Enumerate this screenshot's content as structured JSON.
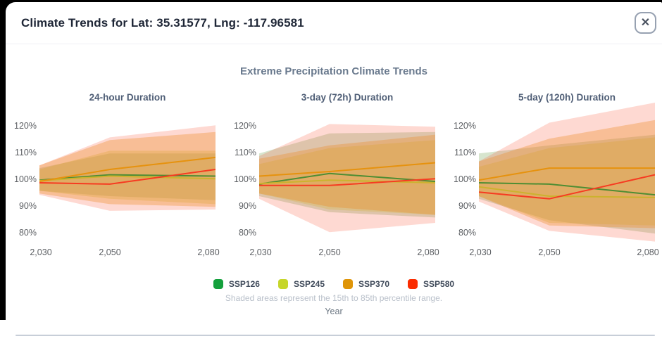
{
  "modal": {
    "title": "Climate Trends for Lat: 35.31577, Lng: -117.96581",
    "close_glyph": "✕"
  },
  "chart": {
    "title": "Extreme Precipitation Climate Trends",
    "note": "Shaded areas represent the 15th to 85th percentile range.",
    "xlabel": "Year",
    "legend": [
      {
        "label": "SSP126",
        "color": "#14a03c"
      },
      {
        "label": "SSP245",
        "color": "#c6d62b"
      },
      {
        "label": "SSP370",
        "color": "#df9508"
      },
      {
        "label": "SSP580",
        "color": "#fb2c00"
      }
    ]
  },
  "chart_data": [
    {
      "type": "line",
      "title": "24-hour Duration",
      "x": [
        2030,
        2050,
        2080
      ],
      "x_tick_labels": [
        "2,030",
        "2,050",
        "2,080"
      ],
      "y_ticks": [
        {
          "label": "120%",
          "value": 120
        },
        {
          "label": "110%",
          "value": 110
        },
        {
          "label": "100%",
          "value": 100
        },
        {
          "label": "90%",
          "value": 90
        },
        {
          "label": "80%",
          "value": 80
        }
      ],
      "ylim": [
        80,
        120
      ],
      "series": [
        {
          "name": "SSP126",
          "line_color": "#4e8d33",
          "band_fill": "rgba(110,160,80,0.28)",
          "values": [
            100,
            102,
            101.5
          ],
          "band_low": [
            96,
            94,
            92.5
          ],
          "band_high": [
            104.5,
            110,
            110
          ]
        },
        {
          "name": "SSP245",
          "line_color": "#ccb22e",
          "band_fill": "rgba(200,205,60,0.30)",
          "values": [
            99.8,
            101.5,
            100.5
          ],
          "band_low": [
            96,
            93,
            91
          ],
          "band_high": [
            104,
            111,
            111
          ]
        },
        {
          "name": "SSP370",
          "line_color": "#e6920e",
          "band_fill": "rgba(232,150,20,0.32)",
          "values": [
            99.5,
            104,
            108.5
          ],
          "band_low": [
            95,
            91,
            90
          ],
          "band_high": [
            105.5,
            115,
            118
          ]
        },
        {
          "name": "SSP580",
          "line_color": "#f63b21",
          "band_fill": "rgba(250,80,50,0.22)",
          "values": [
            99,
            98.5,
            104
          ],
          "band_low": [
            94.5,
            88.5,
            89
          ],
          "band_high": [
            105.5,
            116,
            120.5
          ]
        }
      ]
    },
    {
      "type": "line",
      "title": "3-day (72h) Duration",
      "x": [
        2030,
        2050,
        2080
      ],
      "x_tick_labels": [
        "2,030",
        "2,050",
        "2,080"
      ],
      "y_ticks": [
        {
          "label": "120%",
          "value": 120
        },
        {
          "label": "110%",
          "value": 110
        },
        {
          "label": "100%",
          "value": 100
        },
        {
          "label": "90%",
          "value": 90
        },
        {
          "label": "80%",
          "value": 80
        }
      ],
      "ylim": [
        80,
        120
      ],
      "series": [
        {
          "name": "SSP126",
          "line_color": "#4e8d33",
          "band_fill": "rgba(110,160,80,0.28)",
          "values": [
            98.5,
            102.5,
            99.5
          ],
          "band_low": [
            94,
            88,
            86
          ],
          "band_high": [
            110,
            117.5,
            118
          ]
        },
        {
          "name": "SSP245",
          "line_color": "#ccb22e",
          "band_fill": "rgba(200,205,60,0.30)",
          "values": [
            98.7,
            100,
            99
          ],
          "band_low": [
            95,
            89,
            87
          ],
          "band_high": [
            106,
            112,
            115
          ]
        },
        {
          "name": "SSP370",
          "line_color": "#e6920e",
          "band_fill": "rgba(232,150,20,0.32)",
          "values": [
            101.5,
            103.2,
            106.5
          ],
          "band_low": [
            95,
            90,
            87
          ],
          "band_high": [
            108,
            113,
            117
          ]
        },
        {
          "name": "SSP580",
          "line_color": "#f63b21",
          "band_fill": "rgba(250,80,50,0.22)",
          "values": [
            98,
            98,
            100.5
          ],
          "band_low": [
            93,
            80.5,
            84
          ],
          "band_high": [
            109,
            121,
            120
          ]
        }
      ]
    },
    {
      "type": "line",
      "title": "5-day (120h) Duration",
      "x": [
        2030,
        2050,
        2080
      ],
      "x_tick_labels": [
        "2,030",
        "2,050",
        "2,080"
      ],
      "y_ticks": [
        {
          "label": "120%",
          "value": 120
        },
        {
          "label": "110%",
          "value": 110
        },
        {
          "label": "100%",
          "value": 100
        },
        {
          "label": "90%",
          "value": 90
        },
        {
          "label": "80%",
          "value": 80
        }
      ],
      "ylim": [
        80,
        120
      ],
      "series": [
        {
          "name": "SSP126",
          "line_color": "#4e8d33",
          "band_fill": "rgba(110,160,80,0.28)",
          "values": [
            99,
            98.5,
            94.5
          ],
          "band_low": [
            93,
            85,
            80
          ],
          "band_high": [
            110,
            113,
            117
          ]
        },
        {
          "name": "SSP245",
          "line_color": "#ccb22e",
          "band_fill": "rgba(200,205,60,0.30)",
          "values": [
            97.5,
            94,
            93.5
          ],
          "band_low": [
            94,
            84,
            83
          ],
          "band_high": [
            105,
            112,
            116
          ]
        },
        {
          "name": "SSP370",
          "line_color": "#e6920e",
          "band_fill": "rgba(232,150,20,0.32)",
          "values": [
            100,
            104.5,
            104.5
          ],
          "band_low": [
            94,
            83,
            82
          ],
          "band_high": [
            107,
            115.5,
            122.5
          ]
        },
        {
          "name": "SSP580",
          "line_color": "#f63b21",
          "band_fill": "rgba(250,80,50,0.22)",
          "values": [
            95.5,
            93,
            102
          ],
          "band_low": [
            92,
            81,
            77
          ],
          "band_high": [
            107,
            121.5,
            129
          ]
        }
      ]
    }
  ]
}
